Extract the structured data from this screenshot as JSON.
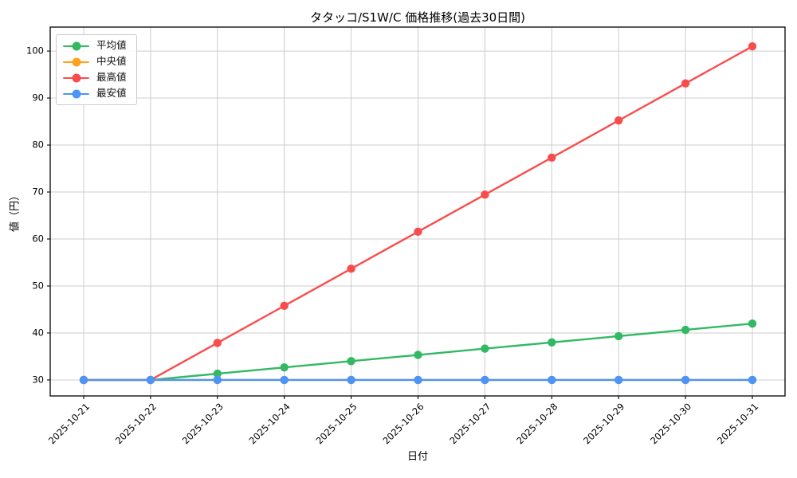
{
  "chart_data": {
    "type": "line",
    "title": "タタッコ/S1W/C 価格推移(過去30日間)",
    "xlabel": "日付",
    "ylabel": "値（円）",
    "categories": [
      "2025-10-21",
      "2025-10-22",
      "2025-10-23",
      "2025-10-24",
      "2025-10-25",
      "2025-10-26",
      "2025-10-27",
      "2025-10-28",
      "2025-10-29",
      "2025-10-30",
      "2025-10-31"
    ],
    "series": [
      {
        "key": "average",
        "name": "平均値",
        "color": "#33b864",
        "values": [
          30,
          30,
          31.33,
          32.67,
          34,
          35.33,
          36.67,
          38,
          39.33,
          40.67,
          42
        ]
      },
      {
        "key": "median",
        "name": "中央値",
        "color": "#ffa31e",
        "values": [
          30,
          30,
          30,
          30,
          30,
          30,
          30,
          30,
          30,
          30,
          30
        ]
      },
      {
        "key": "max",
        "name": "最高値",
        "color": "#f94d4d",
        "values": [
          30,
          30,
          37.89,
          45.78,
          53.67,
          61.56,
          69.44,
          77.33,
          85.22,
          93.11,
          101
        ]
      },
      {
        "key": "min",
        "name": "最安値",
        "color": "#4d94f7",
        "values": [
          30,
          30,
          30,
          30,
          30,
          30,
          30,
          30,
          30,
          30,
          30
        ]
      }
    ],
    "yticks": [
      30,
      40,
      50,
      60,
      70,
      80,
      90,
      100
    ],
    "ylim": [
      26.6,
      105.1
    ],
    "grid": true,
    "grid_color": "#cccccc",
    "legend_position": "upper left"
  }
}
